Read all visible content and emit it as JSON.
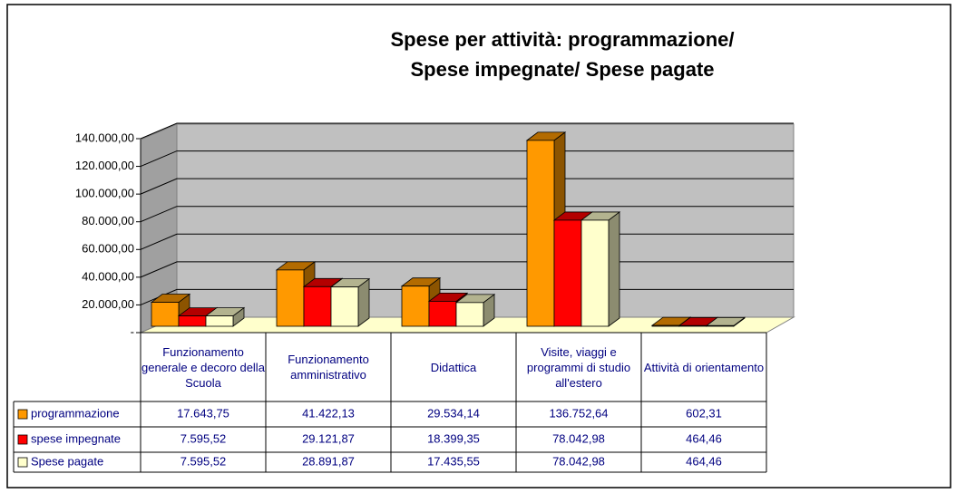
{
  "chart_data": {
    "type": "bar",
    "title": "Spese per attività: programmazione/",
    "subtitle": "Spese impegnate/ Spese pagate",
    "categories": [
      "Funzionamento generale e decoro della Scuola",
      "Funzionamento amministrativo",
      "Didattica",
      "Visite, viaggi e programmi di studio all'estero",
      "Attività di orientamento"
    ],
    "series": [
      {
        "name": "programmazione",
        "color": "#FF9900",
        "values": [
          17643.75,
          41422.13,
          29534.14,
          136752.64,
          602.31
        ],
        "value_labels": [
          "17.643,75",
          "41.422,13",
          "29.534,14",
          "136.752,64",
          "602,31"
        ]
      },
      {
        "name": "spese impegnate",
        "color": "#FF0000",
        "values": [
          7595.52,
          29121.87,
          18399.35,
          78042.98,
          464.46
        ],
        "value_labels": [
          "7.595,52",
          "29.121,87",
          "18.399,35",
          "78.042,98",
          "464,46"
        ]
      },
      {
        "name": "Spese pagate",
        "color": "#FFFFCC",
        "values": [
          7595.52,
          28891.87,
          17435.55,
          78042.98,
          464.46
        ],
        "value_labels": [
          "7.595,52",
          "28.891,87",
          "17.435,55",
          "78.042,98",
          "464,46"
        ]
      }
    ],
    "ylim": [
      0,
      140000
    ],
    "yticks": [
      {
        "value": 0,
        "label": "-"
      },
      {
        "value": 20000,
        "label": "20.000,00"
      },
      {
        "value": 40000,
        "label": "40.000,00"
      },
      {
        "value": 60000,
        "label": "60.000,00"
      },
      {
        "value": 80000,
        "label": "80.000,00"
      },
      {
        "value": 100000,
        "label": "100.000,00"
      },
      {
        "value": 120000,
        "label": "120.000,00"
      },
      {
        "value": 140000,
        "label": "140.000,00"
      }
    ],
    "grid": true
  }
}
